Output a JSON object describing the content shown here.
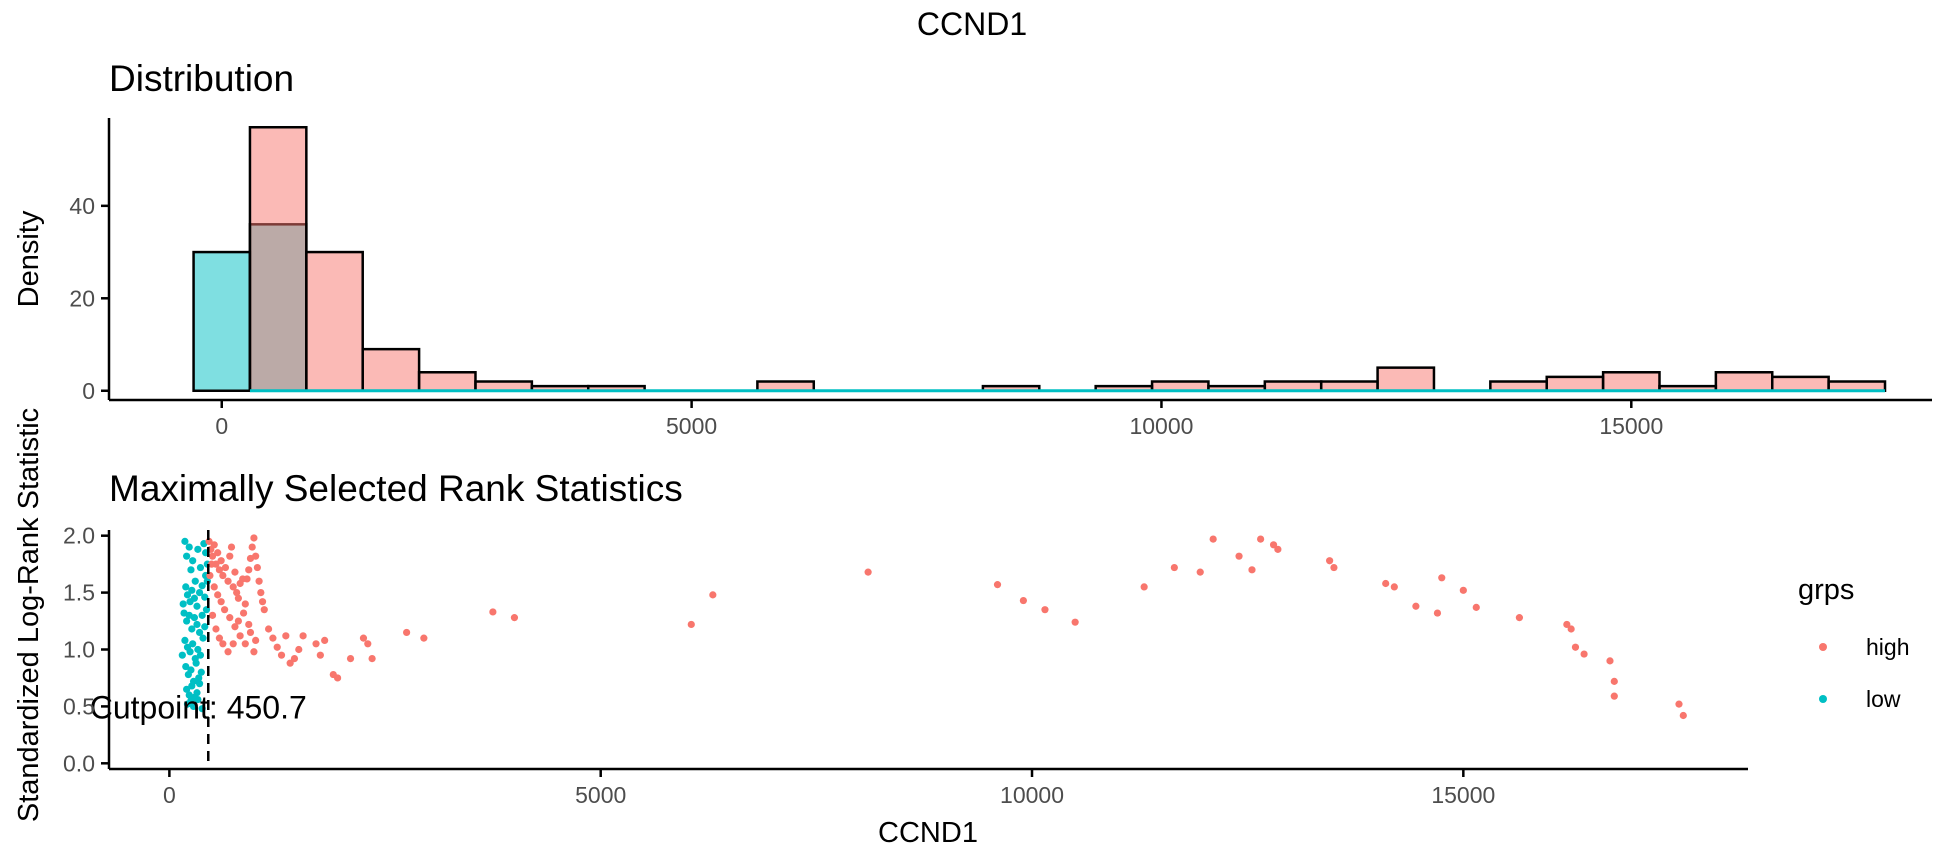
{
  "chart_data": {
    "title": "CCND1",
    "shared_ylabel": "Standardized Log-Rank Statistic",
    "colors": {
      "high": "#F8766D",
      "low": "#00BFC4",
      "high_fill": "#F8766D",
      "low_fill": "#00BFC4"
    },
    "panels": [
      {
        "type": "histogram",
        "title": "Distribution",
        "xlabel": "",
        "ylabel": "Density",
        "xlim": [
          -1200,
          18200
        ],
        "ylim": [
          -2,
          59
        ],
        "xticks": [
          0,
          5000,
          10000,
          15000
        ],
        "xtick_labels": [
          "0",
          "5000",
          "10000",
          "15000"
        ],
        "yticks": [
          0,
          20,
          40
        ],
        "ytick_labels": [
          "0",
          "20",
          "40"
        ],
        "bin_width": 600,
        "series": [
          {
            "name": "high",
            "bins": [
              [
                600,
                57
              ],
              [
                1200,
                30
              ],
              [
                1800,
                9
              ],
              [
                2400,
                4
              ],
              [
                3000,
                2
              ],
              [
                3600,
                1
              ],
              [
                4200,
                1
              ],
              [
                4800,
                0
              ],
              [
                5400,
                0
              ],
              [
                6000,
                2
              ],
              [
                6600,
                0
              ],
              [
                7200,
                0
              ],
              [
                7800,
                0
              ],
              [
                8400,
                1
              ],
              [
                9000,
                0
              ],
              [
                9600,
                1
              ],
              [
                10200,
                2
              ],
              [
                10800,
                1
              ],
              [
                11400,
                2
              ],
              [
                12000,
                2
              ],
              [
                12600,
                5
              ],
              [
                13200,
                0
              ],
              [
                13800,
                2
              ],
              [
                14400,
                3
              ],
              [
                15000,
                4
              ],
              [
                15600,
                1
              ],
              [
                16200,
                4
              ],
              [
                16800,
                3
              ],
              [
                17400,
                2
              ]
            ]
          },
          {
            "name": "low",
            "bins": [
              [
                0,
                30
              ],
              [
                600,
                36
              ]
            ]
          }
        ]
      },
      {
        "type": "scatter",
        "title": "Maximally Selected Rank Statistics",
        "xlabel": "CCND1",
        "ylabel": "Standardized Log-Rank Statistic",
        "xlim": [
          -700,
          18300
        ],
        "ylim": [
          -0.05,
          2.05
        ],
        "xticks": [
          0,
          5000,
          10000,
          15000
        ],
        "xtick_labels": [
          "0",
          "5000",
          "10000",
          "15000"
        ],
        "yticks": [
          0.0,
          0.5,
          1.0,
          1.5,
          2.0
        ],
        "ytick_labels": [
          "0.0",
          "0.5",
          "1.0",
          "1.5",
          "2.0"
        ],
        "cutpoint": 450.7,
        "cutpoint_label": "Cutpoint: 450.7",
        "legend": {
          "title": "grps",
          "entries": [
            "high",
            "low"
          ],
          "position": "right"
        },
        "series": [
          {
            "name": "low",
            "points": [
              [
                180,
                1.95
              ],
              [
                200,
                1.82
              ],
              [
                230,
                1.9
              ],
              [
                250,
                1.7
              ],
              [
                270,
                1.78
              ],
              [
                300,
                1.6
              ],
              [
                330,
                1.88
              ],
              [
                360,
                1.72
              ],
              [
                400,
                1.93
              ],
              [
                420,
                1.65
              ],
              [
                190,
                1.55
              ],
              [
                210,
                1.48
              ],
              [
                240,
                1.42
              ],
              [
                260,
                1.52
              ],
              [
                290,
                1.45
              ],
              [
                320,
                1.38
              ],
              [
                350,
                1.5
              ],
              [
                380,
                1.56
              ],
              [
                410,
                1.46
              ],
              [
                440,
                1.6
              ],
              [
                170,
                1.32
              ],
              [
                200,
                1.25
              ],
              [
                230,
                1.3
              ],
              [
                260,
                1.18
              ],
              [
                290,
                1.28
              ],
              [
                320,
                1.22
              ],
              [
                350,
                1.15
              ],
              [
                380,
                1.3
              ],
              [
                410,
                1.2
              ],
              [
                180,
                1.08
              ],
              [
                210,
                1.02
              ],
              [
                240,
                0.98
              ],
              [
                270,
                1.05
              ],
              [
                300,
                0.92
              ],
              [
                330,
                1.0
              ],
              [
                360,
                0.95
              ],
              [
                390,
                1.1
              ],
              [
                190,
                0.85
              ],
              [
                220,
                0.78
              ],
              [
                250,
                0.82
              ],
              [
                280,
                0.72
              ],
              [
                310,
                0.88
              ],
              [
                340,
                0.75
              ],
              [
                370,
                0.8
              ],
              [
                200,
                0.65
              ],
              [
                230,
                0.6
              ],
              [
                260,
                0.68
              ],
              [
                290,
                0.58
              ],
              [
                320,
                0.62
              ],
              [
                350,
                0.7
              ],
              [
                210,
                0.52
              ],
              [
                250,
                0.55
              ],
              [
                280,
                0.5
              ],
              [
                330,
                0.56
              ],
              [
                380,
                0.48
              ],
              [
                420,
                1.85
              ],
              [
                440,
                1.75
              ],
              [
                160,
                1.4
              ],
              [
                150,
                0.95
              ],
              [
                430,
                1.35
              ]
            ]
          },
          {
            "name": "high",
            "points": [
              [
                460,
                1.95
              ],
              [
                480,
                1.88
              ],
              [
                500,
                1.82
              ],
              [
                520,
                1.92
              ],
              [
                540,
                1.75
              ],
              [
                560,
                1.85
              ],
              [
                580,
                1.7
              ],
              [
                600,
                1.78
              ],
              [
                620,
                1.65
              ],
              [
                650,
                1.72
              ],
              [
                680,
                1.6
              ],
              [
                700,
                1.82
              ],
              [
                720,
                1.9
              ],
              [
                740,
                1.55
              ],
              [
                760,
                1.68
              ],
              [
                780,
                1.5
              ],
              [
                800,
                1.45
              ],
              [
                820,
                1.58
              ],
              [
                850,
                1.62
              ],
              [
                880,
                1.4
              ],
              [
                900,
                1.62
              ],
              [
                920,
                1.7
              ],
              [
                940,
                1.8
              ],
              [
                960,
                1.9
              ],
              [
                980,
                1.98
              ],
              [
                1000,
                1.82
              ],
              [
                1020,
                1.72
              ],
              [
                1040,
                1.6
              ],
              [
                1060,
                1.5
              ],
              [
                1080,
                1.42
              ],
              [
                520,
                1.55
              ],
              [
                560,
                1.48
              ],
              [
                600,
                1.42
              ],
              [
                640,
                1.35
              ],
              [
                700,
                1.28
              ],
              [
                760,
                1.2
              ],
              [
                820,
                1.12
              ],
              [
                880,
                1.05
              ],
              [
                940,
                1.15
              ],
              [
                980,
                0.98
              ],
              [
                500,
                1.3
              ],
              [
                540,
                1.18
              ],
              [
                580,
                1.1
              ],
              [
                620,
                1.05
              ],
              [
                680,
                0.98
              ],
              [
                740,
                1.05
              ],
              [
                800,
                1.25
              ],
              [
                860,
                1.32
              ],
              [
                920,
                1.22
              ],
              [
                1000,
                1.08
              ],
              [
                1100,
                1.35
              ],
              [
                1150,
                1.18
              ],
              [
                1200,
                1.1
              ],
              [
                1250,
                1.02
              ],
              [
                1300,
                0.95
              ],
              [
                1350,
                1.12
              ],
              [
                1400,
                0.88
              ],
              [
                1450,
                0.92
              ],
              [
                1500,
                1.0
              ],
              [
                1550,
                1.12
              ],
              [
                1700,
                1.05
              ],
              [
                1750,
                0.95
              ],
              [
                1800,
                1.08
              ],
              [
                1900,
                0.78
              ],
              [
                1950,
                0.75
              ],
              [
                2100,
                0.92
              ],
              [
                2250,
                1.1
              ],
              [
                2300,
                1.05
              ],
              [
                2350,
                0.92
              ],
              [
                2750,
                1.15
              ],
              [
                2950,
                1.1
              ],
              [
                3750,
                1.33
              ],
              [
                4000,
                1.28
              ],
              [
                6050,
                1.22
              ],
              [
                6300,
                1.48
              ],
              [
                8100,
                1.68
              ],
              [
                9600,
                1.57
              ],
              [
                9900,
                1.43
              ],
              [
                10150,
                1.35
              ],
              [
                10500,
                1.24
              ],
              [
                11300,
                1.55
              ],
              [
                11650,
                1.72
              ],
              [
                11950,
                1.68
              ],
              [
                12100,
                1.97
              ],
              [
                12400,
                1.82
              ],
              [
                12550,
                1.7
              ],
              [
                12650,
                1.97
              ],
              [
                12800,
                1.92
              ],
              [
                12850,
                1.88
              ],
              [
                13450,
                1.78
              ],
              [
                13500,
                1.72
              ],
              [
                14100,
                1.58
              ],
              [
                14200,
                1.55
              ],
              [
                14450,
                1.38
              ],
              [
                14700,
                1.32
              ],
              [
                14750,
                1.63
              ],
              [
                15000,
                1.52
              ],
              [
                15150,
                1.37
              ],
              [
                15650,
                1.28
              ],
              [
                16200,
                1.22
              ],
              [
                16250,
                1.18
              ],
              [
                16300,
                1.02
              ],
              [
                16400,
                0.96
              ],
              [
                16700,
                0.9
              ],
              [
                16750,
                0.72
              ],
              [
                16750,
                0.59
              ],
              [
                17500,
                0.52
              ],
              [
                17550,
                0.42
              ],
              [
                470,
                1.65
              ],
              [
                490,
                1.75
              ]
            ]
          }
        ]
      }
    ]
  }
}
